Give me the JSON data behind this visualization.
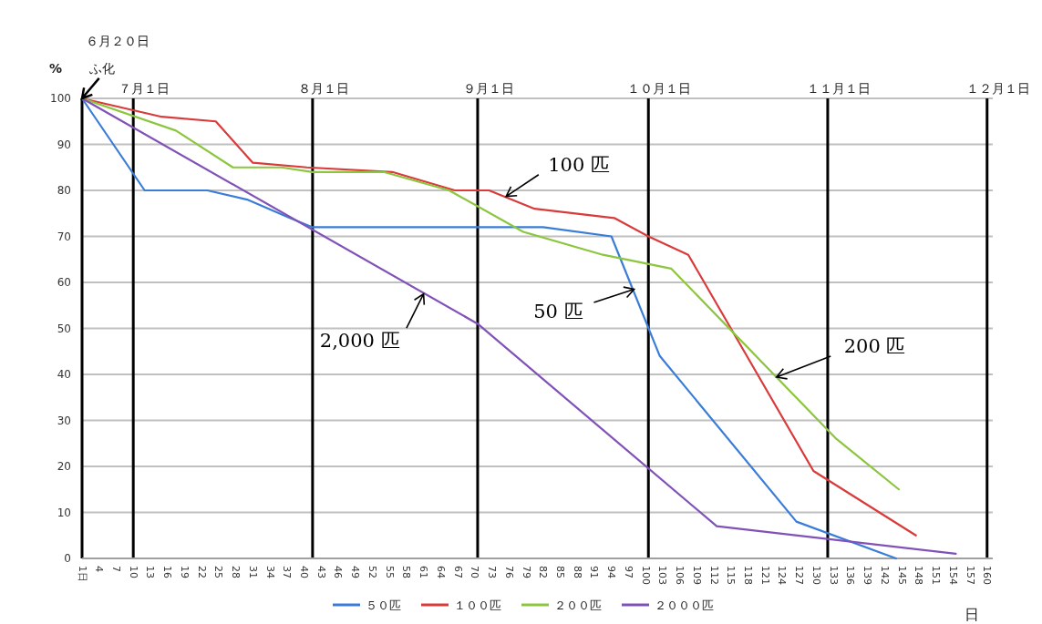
{
  "chart_data": {
    "type": "line",
    "ylabel": "%",
    "xlabel": "日",
    "xlim": [
      1,
      161
    ],
    "xticks": [
      {
        "value": 1,
        "label": "1日"
      },
      4,
      7,
      10,
      13,
      16,
      19,
      22,
      25,
      28,
      31,
      34,
      37,
      40,
      43,
      46,
      49,
      52,
      55,
      58,
      61,
      64,
      67,
      70,
      73,
      76,
      79,
      82,
      85,
      88,
      91,
      94,
      97,
      100,
      103,
      106,
      109,
      112,
      115,
      118,
      121,
      124,
      127,
      130,
      133,
      136,
      139,
      142,
      145,
      148,
      151,
      154,
      157,
      160
    ],
    "ylim": [
      0,
      100
    ],
    "yticks": [
      0,
      10,
      20,
      30,
      40,
      50,
      60,
      70,
      80,
      90,
      100
    ],
    "grid": "y",
    "legend": "bottom",
    "marker": "none",
    "line_style": "solid",
    "series": [
      {
        "name": "５０匹",
        "color": "#3a7dd8",
        "x": [
          1,
          12,
          23,
          30,
          37.5,
          41.5,
          82,
          94,
          102.5,
          126.5,
          144
        ],
        "values": [
          100,
          80,
          80,
          78,
          74,
          72,
          72,
          70,
          44,
          8,
          0
        ]
      },
      {
        "name": "１００匹",
        "color": "#d93a3a",
        "x": [
          1,
          15,
          24.5,
          31,
          40.5,
          55.5,
          66.5,
          72.5,
          80.5,
          94.5,
          100.5,
          107.5,
          129.5,
          147.5
        ],
        "values": [
          100,
          96,
          95,
          86,
          85,
          84,
          80,
          80,
          76,
          74,
          70,
          66,
          19,
          5
        ]
      },
      {
        "name": "２００匹",
        "color": "#8cc63e",
        "x": [
          1,
          17.5,
          27.5,
          36,
          41.5,
          54,
          65.5,
          78.5,
          92.5,
          104.5,
          133.5,
          144.5
        ],
        "values": [
          100,
          93,
          85,
          85,
          84,
          84,
          80,
          71,
          66,
          63,
          26,
          15
        ]
      },
      {
        "name": "２０００匹",
        "color": "#8052b8",
        "x": [
          1,
          70.5,
          112.5,
          154.5
        ],
        "values": [
          100,
          51,
          7,
          1
        ]
      }
    ],
    "ref_lines": [
      {
        "axis": "x",
        "value": 10,
        "label": "７月１日"
      },
      {
        "axis": "x",
        "value": 41.5,
        "label": "８月１日"
      },
      {
        "axis": "x",
        "value": 70.5,
        "label": "９月１日"
      },
      {
        "axis": "x",
        "value": 100.5,
        "label": "１０月１日"
      },
      {
        "axis": "x",
        "value": 132,
        "label": "１１月１日"
      },
      {
        "axis": "x",
        "value": 160,
        "label": "１２月１日"
      }
    ],
    "annotations": [
      "６月２０日",
      {
        "text": "ふ化",
        "x": 1,
        "y": 100
      },
      {
        "text": "100 匹",
        "x": 75.5,
        "y": 78.7
      },
      {
        "text": "50 匹",
        "x": 98,
        "y": 58.5
      },
      {
        "text": "2,000 匹",
        "x": 61,
        "y": 57.5
      },
      {
        "text": "200 匹",
        "x": 123,
        "y": 39.4
      }
    ]
  }
}
